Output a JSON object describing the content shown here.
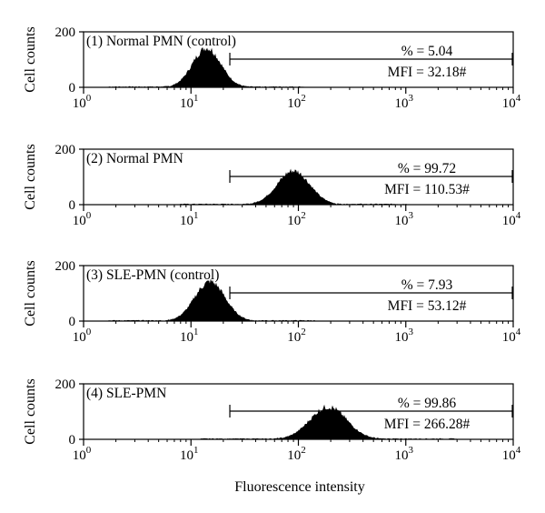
{
  "figure": {
    "xlabel": "Fluorescence intensity",
    "ylabel": "Cell counts"
  },
  "chart_data": [
    {
      "type": "area",
      "panel_title": "(1) Normal PMN (control)",
      "xscale": "log",
      "xlim": [
        1,
        10000
      ],
      "ylim": [
        0,
        200
      ],
      "yticks": [
        "0",
        "200"
      ],
      "xticks": [
        {
          "base": "10",
          "exp": "0"
        },
        {
          "base": "10",
          "exp": "1"
        },
        {
          "base": "10",
          "exp": "2"
        },
        {
          "base": "10",
          "exp": "3"
        },
        {
          "base": "10",
          "exp": "4"
        }
      ],
      "ylabel": "Cell counts",
      "histogram": {
        "peak_x": 14,
        "peak_y": 140,
        "log_sigma": 0.13
      },
      "gate": {
        "x_start": 23,
        "x_end": 10000,
        "percent_label": "% = 5.04",
        "mfi_label": "MFI = 32.18#"
      },
      "color": "#000000"
    },
    {
      "type": "area",
      "panel_title": "(2) Normal PMN",
      "xscale": "log",
      "xlim": [
        1,
        10000
      ],
      "ylim": [
        0,
        200
      ],
      "yticks": [
        "0",
        "200"
      ],
      "xticks": [
        {
          "base": "10",
          "exp": "0"
        },
        {
          "base": "10",
          "exp": "1"
        },
        {
          "base": "10",
          "exp": "2"
        },
        {
          "base": "10",
          "exp": "3"
        },
        {
          "base": "10",
          "exp": "4"
        }
      ],
      "ylabel": "Cell counts",
      "histogram": {
        "peak_x": 90,
        "peak_y": 120,
        "log_sigma": 0.15
      },
      "gate": {
        "x_start": 23,
        "x_end": 10000,
        "percent_label": "% = 99.72",
        "mfi_label": "MFI = 110.53#"
      },
      "color": "#000000"
    },
    {
      "type": "area",
      "panel_title": "(3) SLE-PMN (control)",
      "xscale": "log",
      "xlim": [
        1,
        10000
      ],
      "ylim": [
        0,
        200
      ],
      "yticks": [
        "0",
        "200"
      ],
      "xticks": [
        {
          "base": "10",
          "exp": "0"
        },
        {
          "base": "10",
          "exp": "1"
        },
        {
          "base": "10",
          "exp": "2"
        },
        {
          "base": "10",
          "exp": "3"
        },
        {
          "base": "10",
          "exp": "4"
        }
      ],
      "ylabel": "Cell counts",
      "histogram": {
        "peak_x": 15,
        "peak_y": 140,
        "log_sigma": 0.14
      },
      "gate": {
        "x_start": 23,
        "x_end": 10000,
        "percent_label": "% = 7.93",
        "mfi_label": "MFI = 53.12#"
      },
      "color": "#000000"
    },
    {
      "type": "area",
      "panel_title": "(4) SLE-PMN",
      "xscale": "log",
      "xlim": [
        1,
        10000
      ],
      "ylim": [
        0,
        200
      ],
      "yticks": [
        "0",
        "200"
      ],
      "xticks": [
        {
          "base": "10",
          "exp": "0"
        },
        {
          "base": "10",
          "exp": "1"
        },
        {
          "base": "10",
          "exp": "2"
        },
        {
          "base": "10",
          "exp": "3"
        },
        {
          "base": "10",
          "exp": "4"
        }
      ],
      "ylabel": "Cell counts",
      "histogram": {
        "peak_x": 190,
        "peak_y": 115,
        "log_sigma": 0.17
      },
      "gate": {
        "x_start": 23,
        "x_end": 10000,
        "percent_label": "% = 99.86",
        "mfi_label": "MFI = 266.28#"
      },
      "color": "#000000"
    }
  ]
}
